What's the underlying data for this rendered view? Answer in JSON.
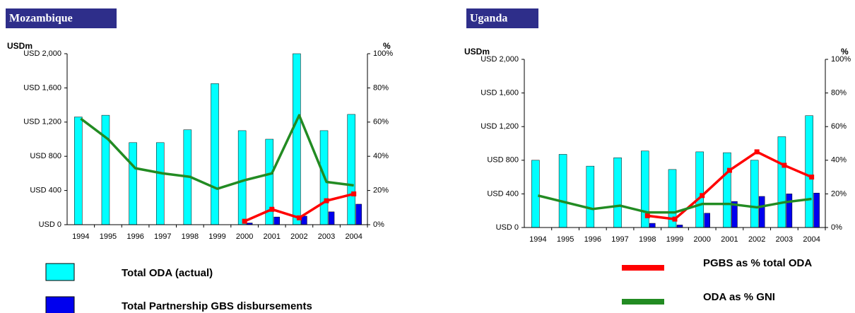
{
  "chart_data": [
    {
      "type": "bar",
      "title": "Mozambique",
      "ylabel": "USDm",
      "y2label": "%",
      "categories": [
        "1994",
        "1995",
        "1996",
        "1997",
        "1998",
        "1999",
        "2000",
        "2001",
        "2002",
        "2003",
        "2004"
      ],
      "ylim": [
        0,
        2000
      ],
      "yticks": [
        {
          "value": 0,
          "label": "USD 0"
        },
        {
          "value": 400,
          "label": "USD 400"
        },
        {
          "value": 800,
          "label": "USD 800"
        },
        {
          "value": 1200,
          "label": "USD 1,200"
        },
        {
          "value": 1600,
          "label": "USD 1,600"
        },
        {
          "value": 2000,
          "label": "USD 2,000"
        }
      ],
      "y2lim": [
        0,
        100
      ],
      "y2ticks": [
        {
          "value": 0,
          "label": "0%"
        },
        {
          "value": 20,
          "label": "20%"
        },
        {
          "value": 40,
          "label": "40%"
        },
        {
          "value": 60,
          "label": "60%"
        },
        {
          "value": 80,
          "label": "80%"
        },
        {
          "value": 100,
          "label": "100%"
        }
      ],
      "series": [
        {
          "name": "Total ODA (actual)",
          "color": "#00ffff",
          "values": [
            1260,
            1280,
            960,
            960,
            1110,
            1650,
            1100,
            1000,
            2000,
            1100,
            1290
          ]
        },
        {
          "name": "Total Partnership GBS disbursements",
          "color": "#0000ee",
          "values": [
            null,
            null,
            null,
            null,
            null,
            null,
            20,
            90,
            100,
            150,
            240
          ]
        },
        {
          "color": "#ff0000",
          "axis": "y2",
          "values": [
            null,
            null,
            null,
            null,
            null,
            null,
            2,
            9,
            4,
            14,
            18
          ]
        },
        {
          "color": "#228b22",
          "axis": "y2",
          "values": [
            62,
            50,
            33,
            30,
            28,
            21,
            26,
            30,
            64,
            25,
            23
          ]
        }
      ]
    },
    {
      "type": "bar",
      "title": "Uganda",
      "ylabel": "USDm",
      "y2label": "%",
      "categories": [
        "1994",
        "1995",
        "1996",
        "1997",
        "1998",
        "1999",
        "2000",
        "2001",
        "2002",
        "2003",
        "2004"
      ],
      "ylim": [
        0,
        2000
      ],
      "yticks": [
        {
          "value": 0,
          "label": "USD 0"
        },
        {
          "value": 400,
          "label": "USD 400"
        },
        {
          "value": 800,
          "label": "USD 800"
        },
        {
          "value": 1200,
          "label": "USD 1,200"
        },
        {
          "value": 1600,
          "label": "USD 1,600"
        },
        {
          "value": 2000,
          "label": "USD 2,000"
        }
      ],
      "y2lim": [
        0,
        100
      ],
      "y2ticks": [
        {
          "value": 0,
          "label": "0%"
        },
        {
          "value": 20,
          "label": "20%"
        },
        {
          "value": 40,
          "label": "40%"
        },
        {
          "value": 60,
          "label": "60%"
        },
        {
          "value": 80,
          "label": "80%"
        },
        {
          "value": 100,
          "label": "100%"
        }
      ],
      "series": [
        {
          "color": "#00ffff",
          "values": [
            800,
            870,
            730,
            830,
            910,
            690,
            900,
            890,
            800,
            1080,
            1330
          ]
        },
        {
          "color": "#0000ee",
          "values": [
            null,
            null,
            null,
            null,
            50,
            30,
            170,
            310,
            370,
            400,
            410
          ]
        },
        {
          "name": "PGBS as % total ODA",
          "color": "#ff0000",
          "axis": "y2",
          "values": [
            null,
            null,
            null,
            null,
            7,
            5,
            19,
            34,
            45,
            37,
            30
          ]
        },
        {
          "name": "ODA as % GNI",
          "color": "#228b22",
          "axis": "y2",
          "values": [
            19,
            15,
            11,
            13,
            9,
            9,
            14,
            14,
            12,
            15,
            17
          ]
        }
      ]
    }
  ]
}
